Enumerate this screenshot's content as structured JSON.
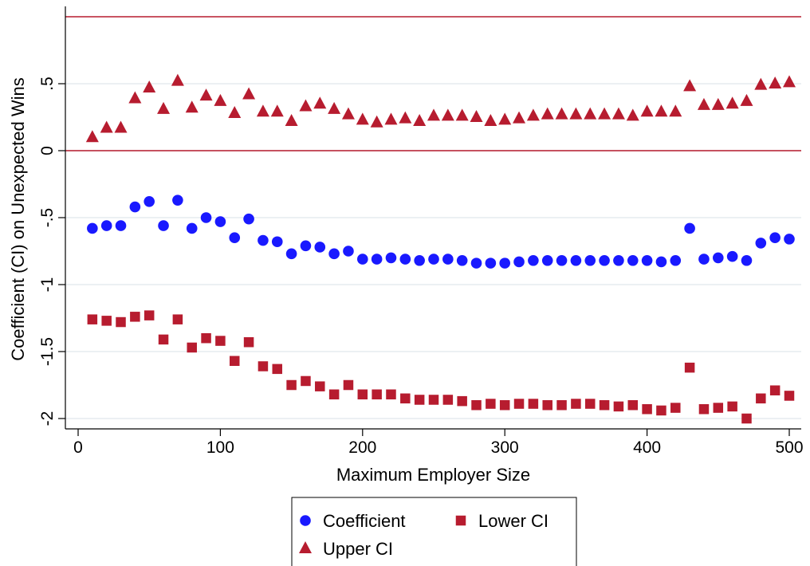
{
  "chart_data": {
    "type": "scatter",
    "title": "",
    "xlabel": "Maximum Employer Size",
    "ylabel": "Coefficient (CI) on Unexpected Wins",
    "xlim": [
      -10,
      505
    ],
    "ylim": [
      -2.1,
      1.0
    ],
    "x_ticks": [
      0,
      100,
      200,
      300,
      400,
      500
    ],
    "x_tick_labels": [
      "0",
      "100",
      "200",
      "300",
      "400",
      "500"
    ],
    "y_ticks": [
      0.5,
      0,
      -0.5,
      -1,
      -1.5,
      -2
    ],
    "y_tick_labels": [
      ".5",
      "0",
      "-.5",
      "-1",
      "-1.5",
      "-2"
    ],
    "grid": "horizontal",
    "reference_lines": [
      0,
      1
    ],
    "reference_line_color": "#b71c2f",
    "legend_position": "bottom",
    "x": [
      10,
      20,
      30,
      40,
      50,
      60,
      70,
      80,
      90,
      100,
      110,
      120,
      130,
      140,
      150,
      160,
      170,
      180,
      190,
      200,
      210,
      220,
      230,
      240,
      250,
      260,
      270,
      280,
      290,
      300,
      310,
      320,
      330,
      340,
      350,
      360,
      370,
      380,
      390,
      400,
      410,
      420,
      430,
      440,
      450,
      460,
      470,
      480,
      490,
      500
    ],
    "series": [
      {
        "name": "Coefficient",
        "marker": "circle",
        "color": "#1919ff",
        "values": [
          -0.58,
          -0.56,
          -0.56,
          -0.42,
          -0.38,
          -0.56,
          -0.37,
          -0.58,
          -0.5,
          -0.53,
          -0.65,
          -0.51,
          -0.67,
          -0.68,
          -0.77,
          -0.71,
          -0.72,
          -0.77,
          -0.75,
          -0.81,
          -0.81,
          -0.8,
          -0.81,
          -0.82,
          -0.81,
          -0.81,
          -0.82,
          -0.84,
          -0.84,
          -0.84,
          -0.83,
          -0.82,
          -0.82,
          -0.82,
          -0.82,
          -0.82,
          -0.82,
          -0.82,
          -0.82,
          -0.82,
          -0.83,
          -0.82,
          -0.58,
          -0.81,
          -0.8,
          -0.79,
          -0.82,
          -0.69,
          -0.65,
          -0.66
        ]
      },
      {
        "name": "Lower CI",
        "marker": "square",
        "color": "#b71c2f",
        "values": [
          -1.26,
          -1.27,
          -1.28,
          -1.24,
          -1.23,
          -1.41,
          -1.26,
          -1.47,
          -1.4,
          -1.42,
          -1.57,
          -1.43,
          -1.61,
          -1.63,
          -1.75,
          -1.72,
          -1.76,
          -1.82,
          -1.75,
          -1.82,
          -1.82,
          -1.82,
          -1.85,
          -1.86,
          -1.86,
          -1.86,
          -1.87,
          -1.9,
          -1.89,
          -1.9,
          -1.89,
          -1.89,
          -1.9,
          -1.9,
          -1.89,
          -1.89,
          -1.9,
          -1.91,
          -1.9,
          -1.93,
          -1.94,
          -1.92,
          -1.62,
          -1.93,
          -1.92,
          -1.91,
          -2.0,
          -1.85,
          -1.79,
          -1.83
        ]
      },
      {
        "name": "Upper CI",
        "marker": "triangle",
        "color": "#b71c2f",
        "values": [
          0.1,
          0.17,
          0.17,
          0.39,
          0.47,
          0.31,
          0.52,
          0.32,
          0.41,
          0.37,
          0.28,
          0.42,
          0.29,
          0.29,
          0.22,
          0.33,
          0.35,
          0.31,
          0.27,
          0.23,
          0.21,
          0.23,
          0.24,
          0.22,
          0.26,
          0.26,
          0.26,
          0.25,
          0.22,
          0.23,
          0.24,
          0.26,
          0.27,
          0.27,
          0.27,
          0.27,
          0.27,
          0.27,
          0.26,
          0.29,
          0.29,
          0.29,
          0.48,
          0.34,
          0.34,
          0.35,
          0.37,
          0.49,
          0.5,
          0.51
        ]
      }
    ]
  },
  "legend": {
    "items": [
      {
        "label": "Coefficient",
        "marker": "circle",
        "color": "#1919ff"
      },
      {
        "label": "Lower CI",
        "marker": "square",
        "color": "#b71c2f"
      },
      {
        "label": "Upper CI",
        "marker": "triangle",
        "color": "#b71c2f"
      }
    ]
  }
}
